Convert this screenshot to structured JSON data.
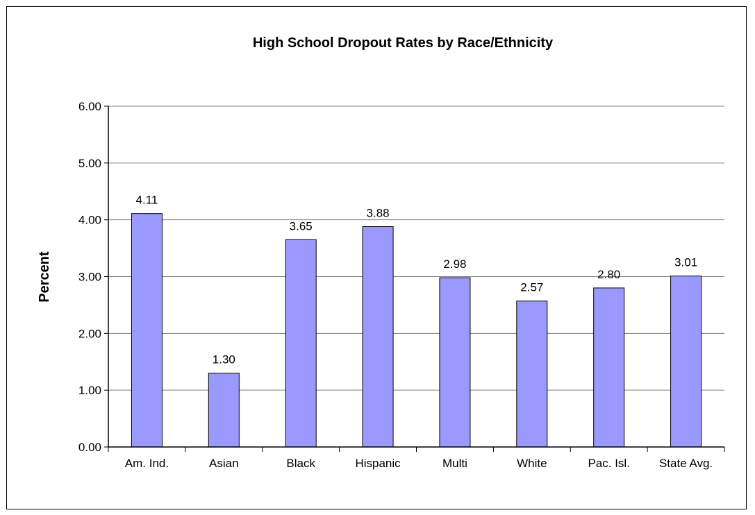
{
  "chart_data": {
    "type": "bar",
    "title": "High School Dropout Rates by Race/Ethnicity",
    "xlabel": "",
    "ylabel": "Percent",
    "categories": [
      "Am. Ind.",
      "Asian",
      "Black",
      "Hispanic",
      "Multi",
      "White",
      "Pac. Isl.",
      "State Avg."
    ],
    "values": [
      4.11,
      1.3,
      3.65,
      3.88,
      2.98,
      2.57,
      2.8,
      3.01
    ],
    "value_labels": [
      "4.11",
      "1.30",
      "3.65",
      "3.88",
      "2.98",
      "2.57",
      "2.80",
      "3.01"
    ],
    "ylim": [
      0,
      6
    ],
    "yticks": [
      "0.00",
      "1.00",
      "2.00",
      "3.00",
      "4.00",
      "5.00",
      "6.00"
    ],
    "grid": true,
    "legend": "none",
    "bar_color": "#9999FF",
    "bar_border_color": "#000000"
  }
}
